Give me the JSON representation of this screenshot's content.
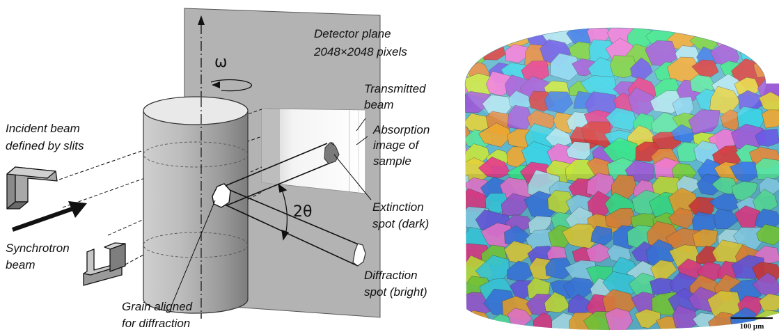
{
  "diagram": {
    "labels": {
      "detector_line1": "Detector plane",
      "detector_line2": "2048×2048 pixels",
      "omega": "ω",
      "transmitted_line1": "Transmitted",
      "transmitted_line2": "beam",
      "absorption_line1": "Absorption",
      "absorption_line2": "image of",
      "absorption_line3": "sample",
      "incident_line1": "Incident beam",
      "incident_line2": "defined by slits",
      "two_theta": "2θ",
      "extinction_line1": "Extinction",
      "extinction_line2": "spot (dark)",
      "synchrotron_line1": "Synchrotron",
      "synchrotron_line2": "beam",
      "diffraction_line1": "Diffraction",
      "diffraction_line2": "spot (bright)",
      "grain_line1": "Grain aligned",
      "grain_line2": "for diffraction"
    }
  },
  "reconstruction": {
    "scale_bar_label": "100 µm"
  },
  "colors": {
    "detector_plane": "#b3b3b3",
    "grain_palette": [
      "#e63b8a",
      "#3bd3e6",
      "#7ad23b",
      "#f0a830",
      "#a05ad6",
      "#3b7be6",
      "#e6d23b",
      "#5ae6a0",
      "#d63b3b",
      "#8ad6f0",
      "#c8e63b",
      "#f07ad6",
      "#3be68a",
      "#6a5ae6",
      "#e6883b",
      "#b0e6f0"
    ]
  }
}
